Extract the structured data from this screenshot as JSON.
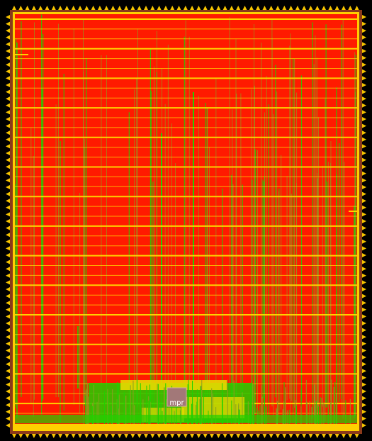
{
  "macro": {
    "label": "mpr"
  },
  "colors": {
    "background": "#000000",
    "core_fill": "#ff1a00",
    "power_rail": "#ffd000",
    "pin": "#f5c400",
    "io_ring": "#8b3a1a",
    "route_green": "#22d000",
    "route_olive": "#8aa020",
    "dense_yellow": "#e8d800",
    "macro_fill": "#a27878",
    "macro_border": "#cfa8a8"
  }
}
